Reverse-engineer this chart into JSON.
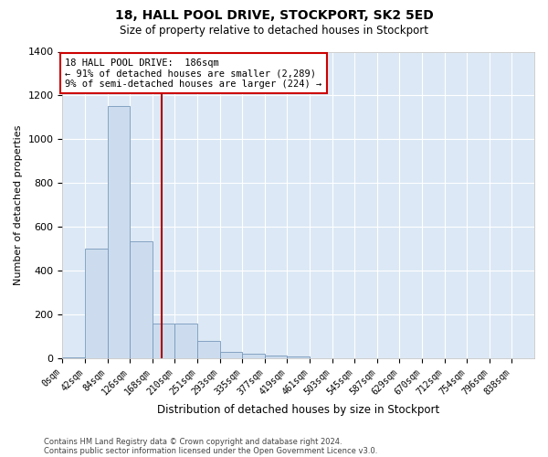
{
  "title": "18, HALL POOL DRIVE, STOCKPORT, SK2 5ED",
  "subtitle": "Size of property relative to detached houses in Stockport",
  "xlabel": "Distribution of detached houses by size in Stockport",
  "ylabel": "Number of detached properties",
  "footer1": "Contains HM Land Registry data © Crown copyright and database right 2024.",
  "footer2": "Contains public sector information licensed under the Open Government Licence v3.0.",
  "bin_labels": [
    "0sqm",
    "42sqm",
    "84sqm",
    "126sqm",
    "168sqm",
    "210sqm",
    "251sqm",
    "293sqm",
    "335sqm",
    "377sqm",
    "419sqm",
    "461sqm",
    "503sqm",
    "545sqm",
    "587sqm",
    "629sqm",
    "670sqm",
    "712sqm",
    "754sqm",
    "796sqm",
    "838sqm"
  ],
  "bar_values": [
    5,
    500,
    1150,
    535,
    160,
    160,
    80,
    30,
    20,
    12,
    10,
    0,
    0,
    0,
    0,
    0,
    0,
    0,
    0,
    0
  ],
  "bar_color": "#ccdcee",
  "bar_edge_color": "#7799bb",
  "red_line_x": 186,
  "annotation_line1": "18 HALL POOL DRIVE:  186sqm",
  "annotation_line2": "← 91% of detached houses are smaller (2,289)",
  "annotation_line3": "9% of semi-detached houses are larger (224) →",
  "annotation_bg": "#ffffff",
  "annotation_border": "#cc0000",
  "red_line_color": "#aa0000",
  "ylim": [
    0,
    1400
  ],
  "xlim_min": 0,
  "xlim_max": 882,
  "bin_width": 42,
  "property_sqm": 186,
  "plot_bg_color": "#dce8f5",
  "fig_bg_color": "#ffffff",
  "grid_color": "#ffffff",
  "title_fontsize": 10,
  "subtitle_fontsize": 8.5,
  "ylabel_fontsize": 8,
  "xlabel_fontsize": 8.5,
  "tick_fontsize": 7,
  "footer_fontsize": 6,
  "annotation_fontsize": 7.5
}
